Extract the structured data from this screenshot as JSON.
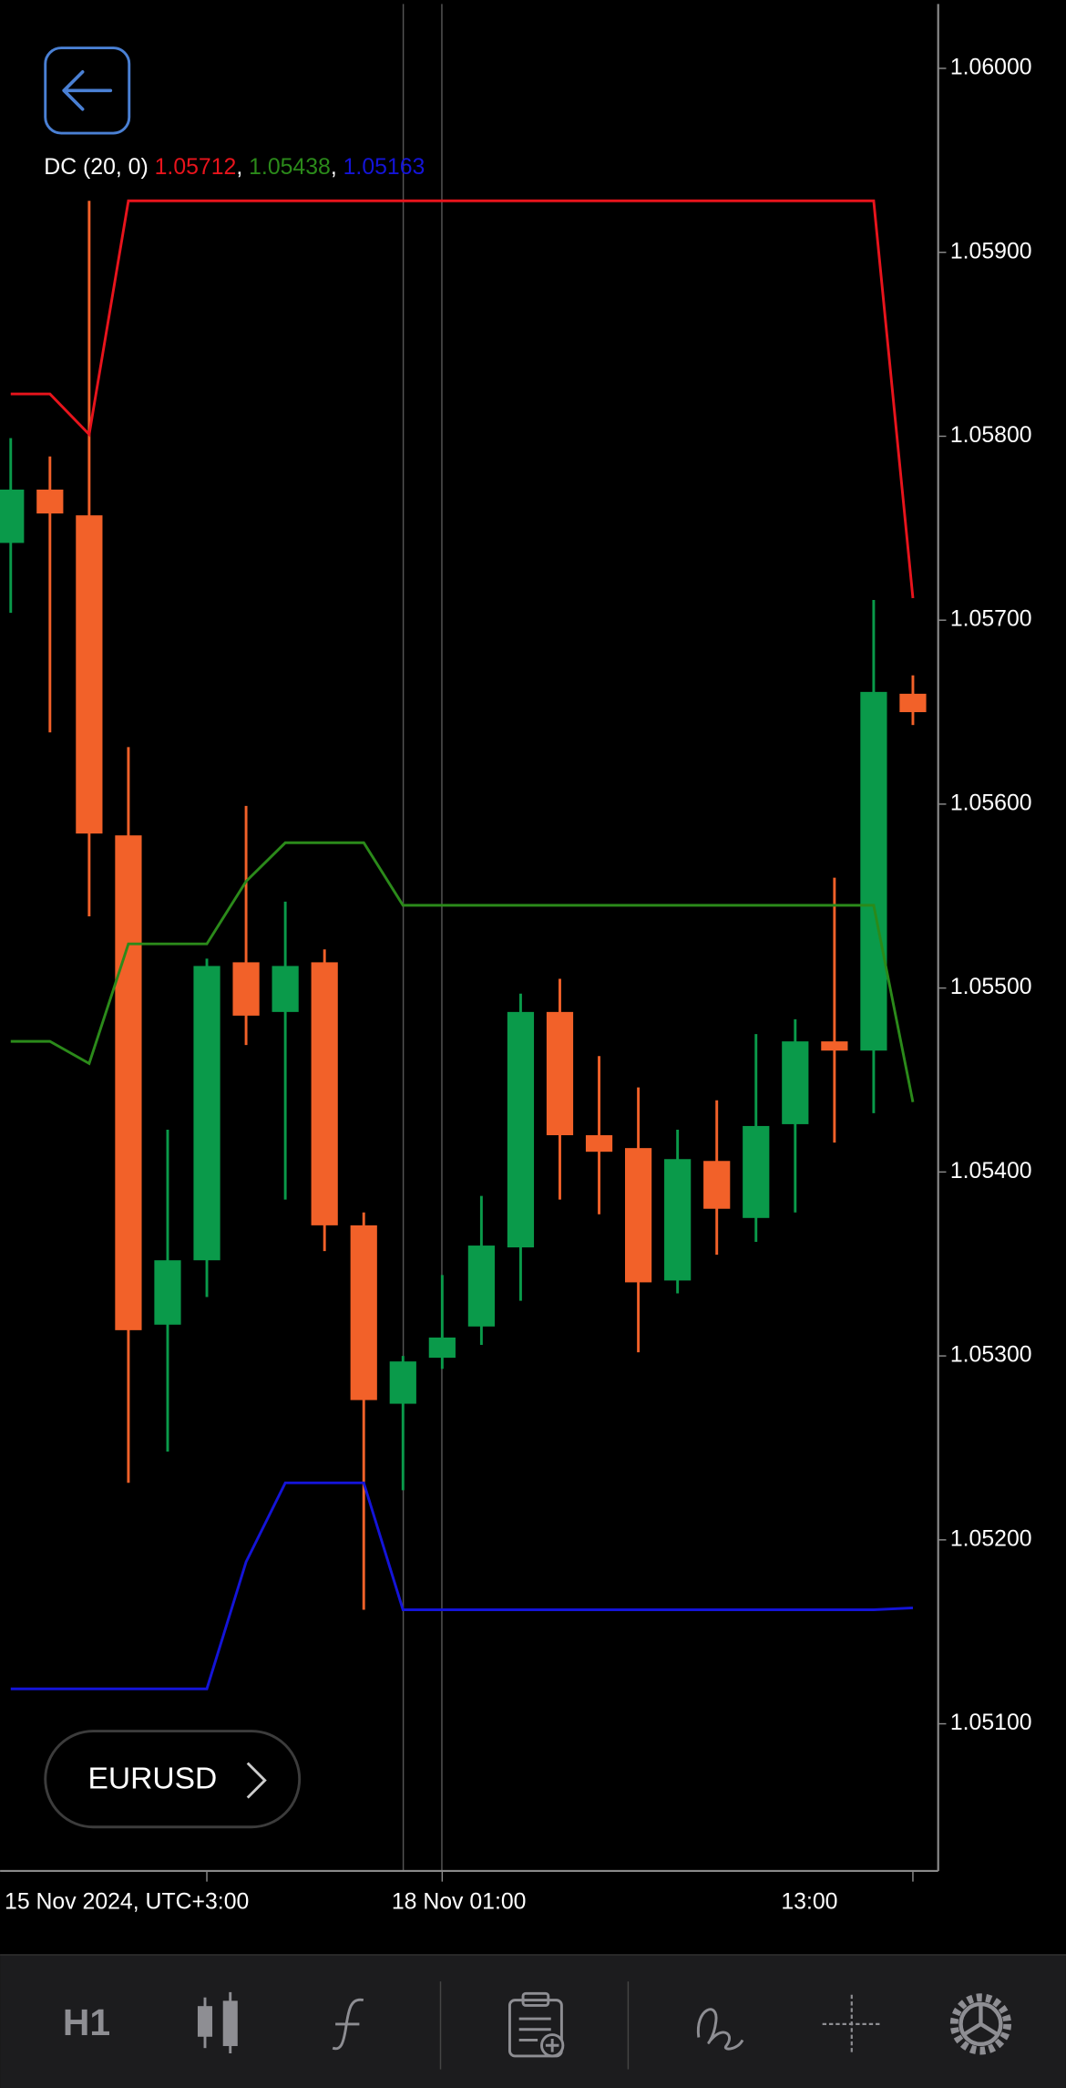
{
  "chart_data": {
    "type": "candlestick",
    "categories": [
      null,
      null,
      null,
      null,
      null,
      "15 Nov 2024, UTC+3:00",
      null,
      null,
      null,
      null,
      null,
      "18 Nov 01:00",
      null,
      null,
      null,
      null,
      null,
      null,
      null,
      null,
      null,
      null,
      null,
      "13:00"
    ],
    "open": [
      1.05742,
      1.05771,
      1.05757,
      1.05583,
      1.05317,
      1.05352,
      1.05514,
      1.05487,
      1.05514,
      1.05371,
      1.05274,
      1.05299,
      1.05316,
      1.05359,
      1.05487,
      1.0542,
      1.05413,
      1.05341,
      1.05406,
      1.05375,
      1.05426,
      1.05471,
      1.05466,
      1.0566
    ],
    "high": [
      1.05799,
      1.05789,
      1.05928,
      1.05631,
      1.05423,
      1.05516,
      1.05599,
      1.05547,
      1.05521,
      1.05378,
      1.053,
      1.05344,
      1.05387,
      1.05497,
      1.05505,
      1.05463,
      1.05446,
      1.05423,
      1.05439,
      1.05475,
      1.05483,
      1.0556,
      1.05711,
      1.0567
    ],
    "low": [
      1.05704,
      1.05639,
      1.05539,
      1.05231,
      1.05248,
      1.05332,
      1.05469,
      1.05385,
      1.05357,
      1.05162,
      1.05227,
      1.05293,
      1.05306,
      1.0533,
      1.05385,
      1.05377,
      1.05302,
      1.05334,
      1.05355,
      1.05362,
      1.05378,
      1.05416,
      1.05432,
      1.05643
    ],
    "close": [
      1.05771,
      1.05758,
      1.05584,
      1.05314,
      1.05352,
      1.05512,
      1.05485,
      1.05512,
      1.05371,
      1.05276,
      1.05297,
      1.0531,
      1.0536,
      1.05487,
      1.0542,
      1.05411,
      1.0534,
      1.05407,
      1.0538,
      1.05425,
      1.05471,
      1.05466,
      1.05661,
      1.0565
    ],
    "up_color": "#0a9a4a",
    "down_color": "#f26129",
    "indicator": {
      "label": "DC (20, 0)",
      "separator": ", ",
      "lines": [
        {
          "color": "#e8141c",
          "values": [
            1.05823,
            1.05823,
            1.05801,
            1.05928,
            1.05928,
            1.05928,
            1.05928,
            1.05928,
            1.05928,
            1.05928,
            1.05928,
            1.05928,
            1.05928,
            1.05928,
            1.05928,
            1.05928,
            1.05928,
            1.05928,
            1.05928,
            1.05928,
            1.05928,
            1.05928,
            1.05928,
            1.05712
          ]
        },
        {
          "color": "#2b8a1a",
          "values": [
            1.05471,
            1.05471,
            1.05459,
            1.05524,
            1.05524,
            1.05524,
            1.05558,
            1.05579,
            1.05579,
            1.05579,
            1.05545,
            1.05545,
            1.05545,
            1.05545,
            1.05545,
            1.05545,
            1.05545,
            1.05545,
            1.05545,
            1.05545,
            1.05545,
            1.05545,
            1.05545,
            1.05438
          ]
        },
        {
          "color": "#1414d8",
          "values": [
            1.05119,
            1.05119,
            1.05119,
            1.05119,
            1.05119,
            1.05119,
            1.05188,
            1.05231,
            1.05231,
            1.05231,
            1.05162,
            1.05162,
            1.05162,
            1.05162,
            1.05162,
            1.05162,
            1.05162,
            1.05162,
            1.05162,
            1.05162,
            1.05162,
            1.05162,
            1.05162,
            1.05163
          ]
        }
      ]
    },
    "ylim": [
      1.0502,
      1.06035
    ],
    "yticks": [
      {
        "value": 1.06,
        "label": "1.06000"
      },
      {
        "value": 1.059,
        "label": "1.05900"
      },
      {
        "value": 1.058,
        "label": "1.05800"
      },
      {
        "value": 1.057,
        "label": "1.05700"
      },
      {
        "value": 1.056,
        "label": "1.05600"
      },
      {
        "value": 1.055,
        "label": "1.05500"
      },
      {
        "value": 1.054,
        "label": "1.05400"
      },
      {
        "value": 1.053,
        "label": "1.05300"
      },
      {
        "value": 1.052,
        "label": "1.05200"
      },
      {
        "value": 1.051,
        "label": "1.05100"
      }
    ]
  },
  "symbol": "EURUSD",
  "toolbar": {
    "timeframe": "H1"
  }
}
